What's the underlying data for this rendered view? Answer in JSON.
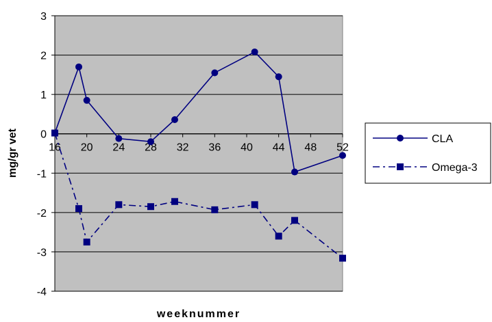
{
  "chart_data": {
    "type": "line",
    "xlabel": "weeknummer",
    "ylabel": "mg/gr vet",
    "xlim": [
      16,
      52
    ],
    "ylim": [
      -4,
      3
    ],
    "x_ticks": [
      16,
      20,
      24,
      28,
      32,
      36,
      40,
      44,
      48,
      52
    ],
    "y_ticks": [
      3,
      2,
      1,
      0,
      -1,
      -2,
      -3,
      -4
    ],
    "grid": true,
    "legend_position": "right",
    "plot_background": "#c0c0c0",
    "series": [
      {
        "name": "CLA",
        "color": "#000080",
        "marker": "circle",
        "line_style": "solid",
        "x": [
          16,
          19,
          20,
          24,
          28,
          31,
          36,
          41,
          44,
          46,
          52
        ],
        "values": [
          0.02,
          1.7,
          0.85,
          -0.12,
          -0.2,
          0.36,
          1.55,
          2.08,
          1.45,
          -0.97,
          -0.55
        ]
      },
      {
        "name": "Omega-3",
        "color": "#000080",
        "marker": "square",
        "line_style": "dashdot",
        "x": [
          16,
          19,
          20,
          24,
          28,
          31,
          36,
          41,
          44,
          46,
          52
        ],
        "values": [
          0.02,
          -1.9,
          -2.75,
          -1.8,
          -1.85,
          -1.72,
          -1.93,
          -1.8,
          -2.6,
          -2.2,
          -3.16
        ]
      }
    ]
  }
}
